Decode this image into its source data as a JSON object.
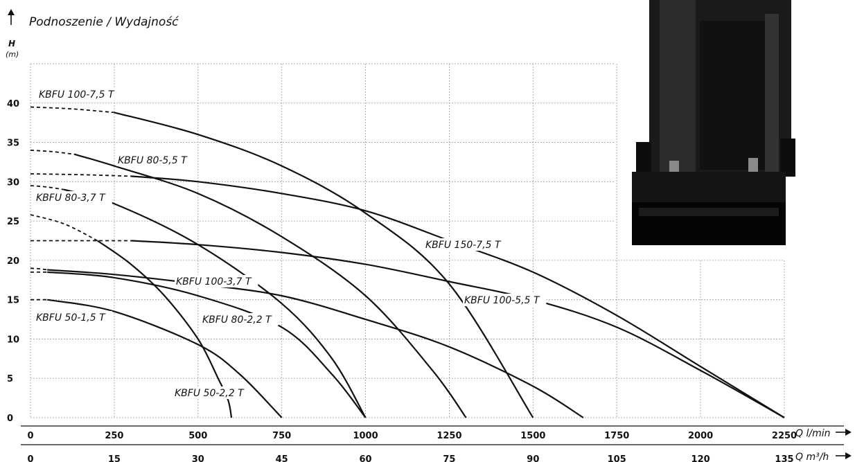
{
  "chart_data": {
    "type": "line",
    "title": "Podnoszenie / Wydajność",
    "ylabel": "H",
    "yunit": "(m)",
    "xlabel": "Q l/min",
    "x2label": "Q m³/h",
    "ylim": [
      0,
      45
    ],
    "xlim": [
      0,
      2250
    ],
    "yticks": [
      0,
      5,
      10,
      15,
      20,
      25,
      30,
      35,
      40
    ],
    "xticks": [
      0,
      250,
      500,
      750,
      1000,
      1250,
      1500,
      1750,
      2000,
      2250
    ],
    "x2ticks": [
      0,
      15,
      30,
      45,
      60,
      75,
      90,
      105,
      120,
      135
    ],
    "grid": true,
    "series": [
      {
        "name": "KBFU 50-1,5 T",
        "shutoff": 15,
        "points": [
          [
            50,
            15
          ],
          [
            250,
            13.5
          ],
          [
            500,
            9.3
          ],
          [
            625,
            5.5
          ],
          [
            750,
            0
          ]
        ]
      },
      {
        "name": "KBFU 50-2,2 T",
        "shutoff": 25.8,
        "points": [
          [
            200,
            22.5
          ],
          [
            300,
            19.5
          ],
          [
            400,
            15.5
          ],
          [
            500,
            10
          ],
          [
            560,
            5
          ],
          [
            590,
            2.2
          ],
          [
            600,
            0
          ]
        ]
      },
      {
        "name": "KBFU 80-2,2 T",
        "shutoff": 18.5,
        "points": [
          [
            50,
            18.5
          ],
          [
            250,
            17.8
          ],
          [
            500,
            15.5
          ],
          [
            750,
            11.5
          ],
          [
            900,
            5.5
          ],
          [
            1000,
            0
          ]
        ]
      },
      {
        "name": "KBFU 80-3,7 T",
        "shutoff": 29.5,
        "points": [
          [
            100,
            29
          ],
          [
            250,
            27.2
          ],
          [
            500,
            22
          ],
          [
            750,
            14.5
          ],
          [
            900,
            7.5
          ],
          [
            1000,
            0
          ]
        ]
      },
      {
        "name": "KBFU 80-5,5 T",
        "shutoff": 34,
        "points": [
          [
            130,
            33.5
          ],
          [
            250,
            32
          ],
          [
            500,
            28.5
          ],
          [
            750,
            23
          ],
          [
            1000,
            15.5
          ],
          [
            1200,
            6
          ],
          [
            1300,
            0
          ]
        ]
      },
      {
        "name": "KBFU 100-3,7 T",
        "shutoff": 19,
        "points": [
          [
            50,
            18.8
          ],
          [
            250,
            18.2
          ],
          [
            500,
            17
          ],
          [
            750,
            15.5
          ],
          [
            1000,
            12.5
          ],
          [
            1250,
            9
          ],
          [
            1500,
            4
          ],
          [
            1650,
            0
          ]
        ]
      },
      {
        "name": "KBFU 100-5,5 T",
        "shutoff": 22.5,
        "points": [
          [
            300,
            22.5
          ],
          [
            500,
            22
          ],
          [
            750,
            21
          ],
          [
            1000,
            19.5
          ],
          [
            1250,
            17.3
          ],
          [
            1500,
            15
          ],
          [
            1750,
            11.5
          ],
          [
            2000,
            6
          ],
          [
            2250,
            0
          ]
        ]
      },
      {
        "name": "KBFU 100-7,5 T",
        "shutoff": 39.5,
        "points": [
          [
            250,
            38.8
          ],
          [
            500,
            36
          ],
          [
            750,
            32
          ],
          [
            1000,
            26
          ],
          [
            1250,
            17
          ],
          [
            1500,
            0
          ]
        ]
      },
      {
        "name": "KBFU 150-7,5 T",
        "shutoff": 31,
        "points": [
          [
            300,
            30.7
          ],
          [
            500,
            30
          ],
          [
            750,
            28.5
          ],
          [
            1000,
            26.3
          ],
          [
            1250,
            22.5
          ],
          [
            1500,
            18.5
          ],
          [
            1750,
            13
          ],
          [
            2000,
            6.5
          ],
          [
            2250,
            0
          ]
        ]
      }
    ]
  }
}
